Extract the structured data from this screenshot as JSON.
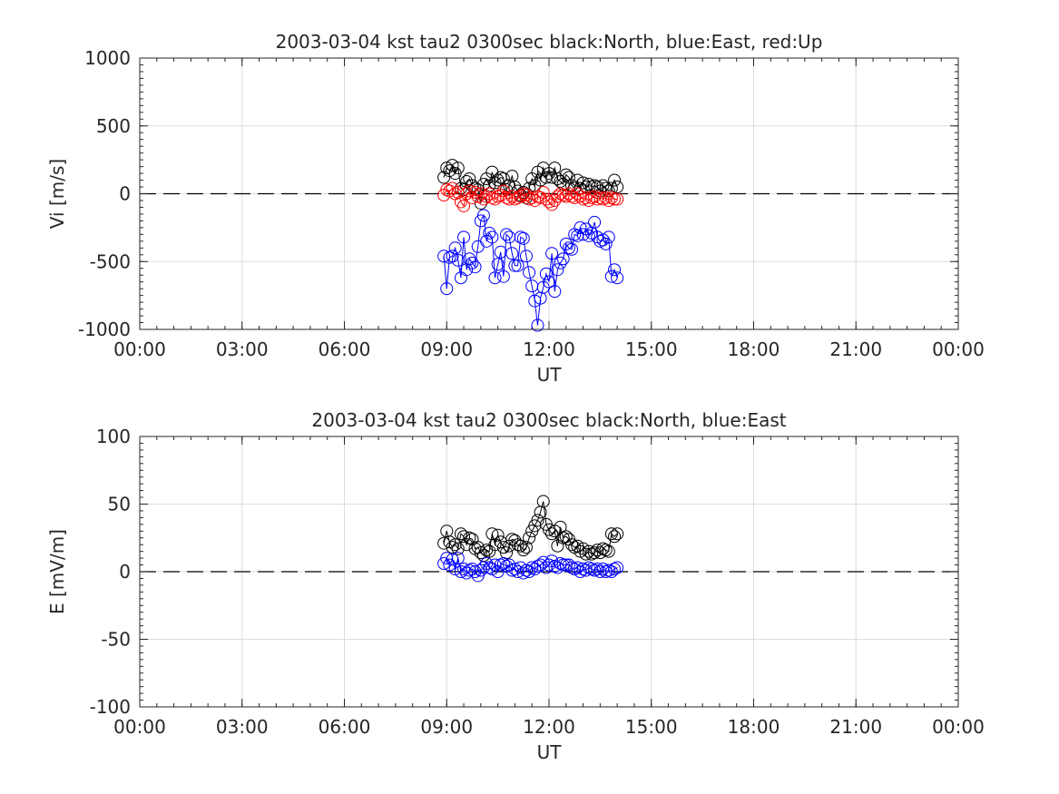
{
  "chart_data": [
    {
      "type": "line",
      "title": "2003-03-04 kst tau2 0300sec black:North, blue:East, red:Up",
      "xlabel": "UT",
      "ylabel": "Vi [m/s]",
      "xlim": [
        0,
        24
      ],
      "ylim": [
        -1000,
        1000
      ],
      "xticks": [
        0,
        3,
        6,
        9,
        12,
        15,
        18,
        21,
        24
      ],
      "xtick_labels": [
        "00:00",
        "03:00",
        "06:00",
        "09:00",
        "12:00",
        "15:00",
        "18:00",
        "21:00",
        "00:00"
      ],
      "yticks": [
        -1000,
        -500,
        0,
        500,
        1000
      ],
      "ytick_labels": [
        "-1000",
        "-500",
        "0",
        "500",
        "1000"
      ],
      "grid": true,
      "zero_line": "dashed",
      "marker": "circle",
      "x": [
        8.917,
        9.0,
        9.083,
        9.167,
        9.25,
        9.333,
        9.417,
        9.5,
        9.583,
        9.667,
        9.75,
        9.833,
        9.917,
        10.0,
        10.083,
        10.167,
        10.25,
        10.333,
        10.417,
        10.5,
        10.583,
        10.667,
        10.75,
        10.833,
        10.917,
        11.0,
        11.083,
        11.167,
        11.25,
        11.333,
        11.417,
        11.5,
        11.583,
        11.667,
        11.75,
        11.833,
        11.917,
        12.0,
        12.083,
        12.167,
        12.25,
        12.333,
        12.417,
        12.5,
        12.583,
        12.667,
        12.75,
        12.833,
        12.917,
        13.0,
        13.083,
        13.167,
        13.25,
        13.333,
        13.417,
        13.5,
        13.583,
        13.667,
        13.75,
        13.833,
        13.917,
        14.0
      ],
      "series": [
        {
          "color": "#000000",
          "values": [
            120,
            190,
            170,
            210,
            150,
            190,
            40,
            30,
            90,
            110,
            60,
            40,
            30,
            -70,
            70,
            110,
            60,
            160,
            80,
            100,
            120,
            110,
            30,
            60,
            130,
            50,
            20,
            -10,
            10,
            -30,
            40,
            110,
            60,
            160,
            100,
            190,
            120,
            150,
            120,
            190,
            110,
            90,
            70,
            140,
            120,
            60,
            40,
            100,
            40,
            80,
            50,
            70,
            50,
            60,
            50,
            20,
            60,
            40,
            20,
            40,
            100,
            50
          ]
        },
        {
          "color": "#0000ff",
          "values": [
            -460,
            -700,
            -470,
            -460,
            -400,
            -490,
            -620,
            -320,
            -560,
            -480,
            -510,
            -540,
            -390,
            -200,
            -160,
            -350,
            -290,
            -320,
            -620,
            -520,
            -430,
            -610,
            -300,
            -320,
            -440,
            -530,
            -530,
            -320,
            -330,
            -460,
            -580,
            -680,
            -790,
            -970,
            -770,
            -690,
            -590,
            -650,
            -440,
            -720,
            -560,
            -510,
            -480,
            -370,
            -400,
            -410,
            -300,
            -310,
            -250,
            -300,
            -260,
            -310,
            -290,
            -210,
            -320,
            -350,
            -340,
            -370,
            -320,
            -610,
            -560,
            -620
          ]
        },
        {
          "color": "#ff0000",
          "values": [
            -10,
            30,
            20,
            40,
            0,
            10,
            -60,
            -90,
            0,
            20,
            -30,
            10,
            -20,
            0,
            -40,
            -20,
            0,
            -30,
            -40,
            -20,
            -10,
            20,
            -30,
            -40,
            -20,
            -40,
            -30,
            -20,
            0,
            -10,
            -40,
            -30,
            -50,
            -20,
            -30,
            10,
            -40,
            -60,
            -80,
            -50,
            -20,
            0,
            -10,
            -20,
            0,
            -20,
            -30,
            0,
            -20,
            -40,
            -30,
            -50,
            -30,
            -20,
            -40,
            -30,
            -40,
            -30,
            -50,
            -30,
            -40,
            -40
          ]
        }
      ]
    },
    {
      "type": "line",
      "title": "2003-03-04 kst tau2 0300sec black:North, blue:East",
      "xlabel": "UT",
      "ylabel": "E [mV/m]",
      "xlim": [
        0,
        24
      ],
      "ylim": [
        -100,
        100
      ],
      "xticks": [
        0,
        3,
        6,
        9,
        12,
        15,
        18,
        21,
        24
      ],
      "xtick_labels": [
        "00:00",
        "03:00",
        "06:00",
        "09:00",
        "12:00",
        "15:00",
        "18:00",
        "21:00",
        "00:00"
      ],
      "yticks": [
        -100,
        -50,
        0,
        50,
        100
      ],
      "ytick_labels": [
        "-100",
        "-50",
        "0",
        "50",
        "100"
      ],
      "grid": true,
      "zero_line": "dashed",
      "marker": "circle",
      "x": [
        8.917,
        9.0,
        9.083,
        9.167,
        9.25,
        9.333,
        9.417,
        9.5,
        9.583,
        9.667,
        9.75,
        9.833,
        9.917,
        10.0,
        10.083,
        10.167,
        10.25,
        10.333,
        10.417,
        10.5,
        10.583,
        10.667,
        10.75,
        10.833,
        10.917,
        11.0,
        11.083,
        11.167,
        11.25,
        11.333,
        11.417,
        11.5,
        11.583,
        11.667,
        11.75,
        11.833,
        11.917,
        12.0,
        12.083,
        12.167,
        12.25,
        12.333,
        12.417,
        12.5,
        12.583,
        12.667,
        12.75,
        12.833,
        12.917,
        13.0,
        13.083,
        13.167,
        13.25,
        13.333,
        13.417,
        13.5,
        13.583,
        13.667,
        13.75,
        13.833,
        13.917,
        14.0
      ],
      "series": [
        {
          "color": "#000000",
          "values": [
            21,
            30,
            22,
            18,
            20,
            17,
            28,
            26,
            20,
            25,
            24,
            17,
            18,
            14,
            12,
            16,
            15,
            28,
            20,
            27,
            22,
            18,
            14,
            19,
            24,
            23,
            20,
            19,
            16,
            18,
            25,
            30,
            34,
            38,
            44,
            52,
            35,
            31,
            28,
            30,
            19,
            33,
            25,
            26,
            24,
            20,
            18,
            19,
            15,
            17,
            13,
            15,
            13,
            14,
            16,
            14,
            17,
            16,
            15,
            28,
            26,
            28
          ]
        },
        {
          "color": "#0000ff",
          "values": [
            6,
            10,
            5,
            9,
            2,
            10,
            0,
            2,
            -1,
            1,
            2,
            0,
            -3,
            1,
            3,
            6,
            3,
            2,
            5,
            0,
            5,
            6,
            4,
            5,
            1,
            2,
            0,
            3,
            -1,
            1,
            0,
            3,
            2,
            4,
            5,
            7,
            3,
            5,
            8,
            4,
            3,
            6,
            5,
            5,
            5,
            3,
            2,
            3,
            0,
            2,
            1,
            3,
            2,
            1,
            2,
            0,
            2,
            0,
            1,
            0,
            2,
            3
          ]
        }
      ]
    }
  ]
}
